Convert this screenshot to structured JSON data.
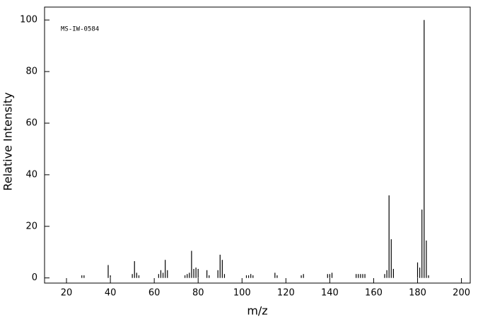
{
  "chart_data": {
    "type": "stem",
    "annotation": "MS-IW-0584",
    "xlabel": "m/z",
    "ylabel": "Relative Intensity",
    "x": [
      27,
      28,
      39,
      40,
      50,
      51,
      52,
      53,
      62,
      63,
      64,
      65,
      66,
      74,
      75,
      76,
      77,
      78,
      79,
      80,
      84,
      85,
      89,
      90,
      91,
      92,
      102,
      103,
      104,
      105,
      115,
      116,
      127,
      128,
      139,
      140,
      141,
      152,
      153,
      154,
      155,
      156,
      165,
      166,
      167,
      168,
      169,
      180,
      181,
      182,
      183,
      184,
      185
    ],
    "values": [
      1,
      1,
      5,
      1,
      1.5,
      6.5,
      2,
      1,
      1.5,
      3,
      2,
      7,
      3,
      1,
      1.5,
      2,
      10.5,
      3.5,
      4,
      3.5,
      3,
      1,
      3,
      9,
      7,
      1.5,
      1,
      1,
      1.5,
      1,
      2,
      1,
      1,
      1.5,
      1.5,
      1.5,
      2,
      1.5,
      1.5,
      1.5,
      1.5,
      1.5,
      1.5,
      3,
      32,
      15,
      3.5,
      6,
      4,
      26.5,
      100,
      14.5,
      1
    ],
    "color": "#000000",
    "xlim": [
      10,
      204
    ],
    "ylim": [
      -2,
      105
    ],
    "xticks": [
      20,
      40,
      60,
      80,
      100,
      120,
      140,
      160,
      180,
      200
    ],
    "yticks": [
      0,
      20,
      40,
      60,
      80,
      100
    ]
  }
}
